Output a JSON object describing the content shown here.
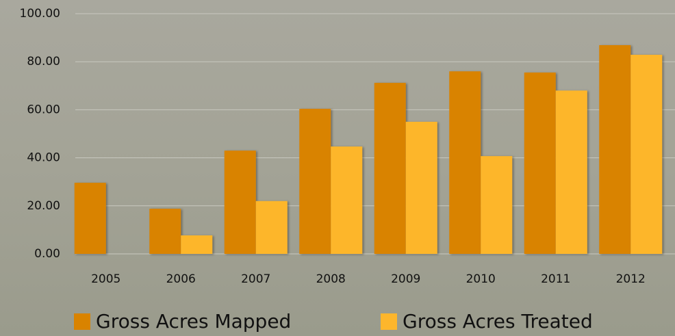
{
  "chart_data": {
    "type": "bar",
    "categories": [
      "2005",
      "2006",
      "2007",
      "2008",
      "2009",
      "2010",
      "2011",
      "2012"
    ],
    "series": [
      {
        "name": "Gross Acres Mapped",
        "color": "#d98300",
        "values": [
          29.6,
          18.8,
          43,
          60.4,
          71.2,
          76,
          75.5,
          86.9
        ]
      },
      {
        "name": "Gross Acres Treated",
        "color": "#fdb62c",
        "values": [
          null,
          7.7,
          22,
          44.7,
          55,
          40.7,
          68,
          82.9
        ]
      }
    ],
    "ylim": [
      0,
      100
    ],
    "yticks": [
      {
        "value": 0,
        "label": "0.00"
      },
      {
        "value": 20,
        "label": "20.00"
      },
      {
        "value": 40,
        "label": "40.00"
      },
      {
        "value": 60,
        "label": "60.00"
      },
      {
        "value": 80,
        "label": "80.00"
      },
      {
        "value": 100,
        "label": "100.00"
      }
    ],
    "grid": true,
    "legend": "bottom"
  }
}
